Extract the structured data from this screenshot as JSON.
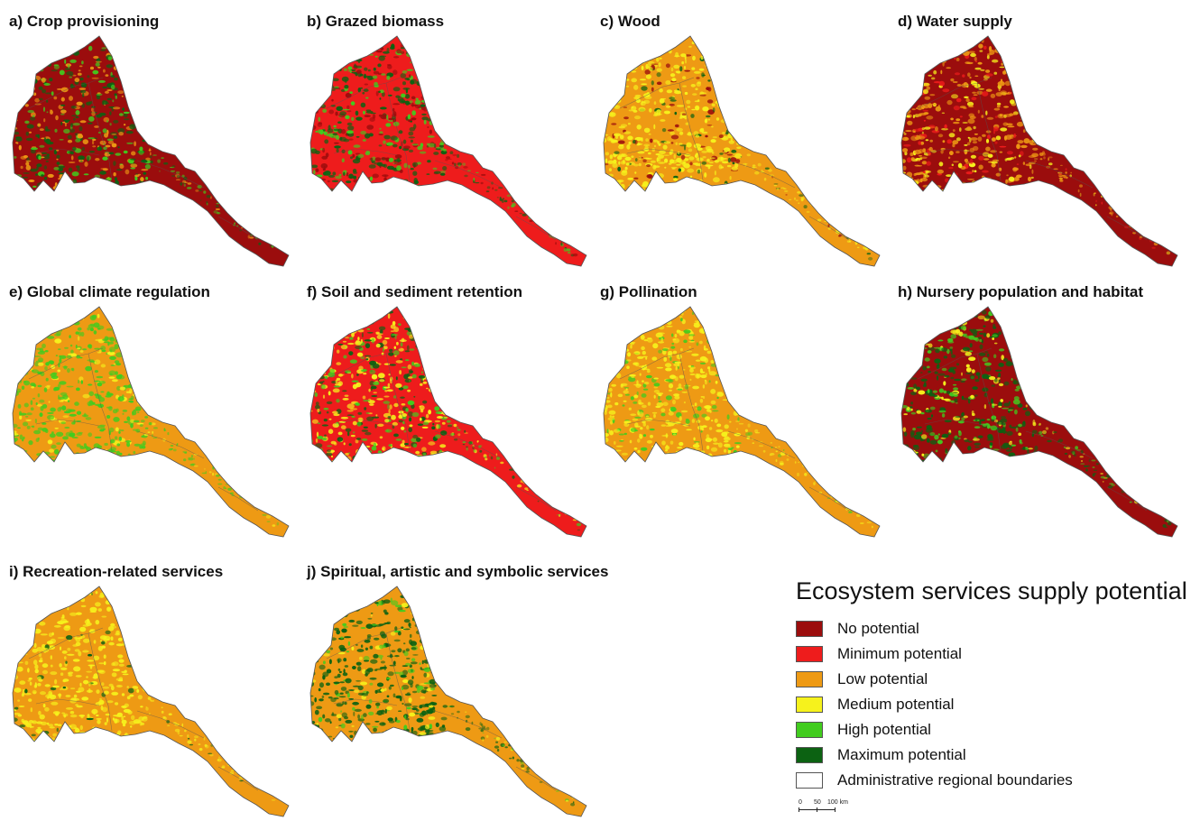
{
  "colors": {
    "no": "#9b0d0d",
    "minimum": "#ee1c1c",
    "low": "#ee9a14",
    "medium": "#f6f21c",
    "high": "#41cc1e",
    "maximum": "#0c6212",
    "boundary": "#555555"
  },
  "panels": [
    {
      "title": "a) Crop provisioning",
      "base": "no",
      "mix": [
        [
          "maximum",
          0.45
        ],
        [
          "high",
          0.25
        ],
        [
          "low",
          0.3
        ]
      ]
    },
    {
      "title": "b) Grazed biomass",
      "base": "minimum",
      "mix": [
        [
          "maximum",
          0.45
        ],
        [
          "high",
          0.3
        ],
        [
          "no",
          0.25
        ]
      ]
    },
    {
      "title": "c) Wood",
      "base": "low",
      "mix": [
        [
          "medium",
          0.75
        ],
        [
          "no",
          0.15
        ],
        [
          "maximum",
          0.1
        ]
      ]
    },
    {
      "title": "d) Water supply",
      "base": "no",
      "mix": [
        [
          "low",
          0.6
        ],
        [
          "medium",
          0.25
        ],
        [
          "minimum",
          0.15
        ]
      ]
    },
    {
      "title": "e) Global climate regulation",
      "base": "low",
      "mix": [
        [
          "high",
          0.8
        ],
        [
          "medium",
          0.2
        ]
      ]
    },
    {
      "title": "f) Soil and sediment retention",
      "base": "minimum",
      "mix": [
        [
          "medium",
          0.55
        ],
        [
          "maximum",
          0.25
        ],
        [
          "high",
          0.2
        ]
      ]
    },
    {
      "title": "g) Pollination",
      "base": "low",
      "mix": [
        [
          "medium",
          0.8
        ],
        [
          "high",
          0.2
        ]
      ]
    },
    {
      "title": "h) Nursery population and habitat",
      "base": "no",
      "mix": [
        [
          "maximum",
          0.55
        ],
        [
          "high",
          0.25
        ],
        [
          "medium",
          0.2
        ]
      ]
    },
    {
      "title": "i) Recreation-related services",
      "base": "low",
      "mix": [
        [
          "medium",
          0.9
        ],
        [
          "maximum",
          0.1
        ]
      ]
    },
    {
      "title": "j) Spiritual, artistic and symbolic services",
      "base": "low",
      "mix": [
        [
          "maximum",
          0.75
        ],
        [
          "high",
          0.15
        ],
        [
          "medium",
          0.1
        ]
      ]
    }
  ],
  "legend": {
    "title": "Ecosystem services supply potential",
    "items": [
      {
        "label": "No potential",
        "color": "#9b0d0d"
      },
      {
        "label": "Minimum potential",
        "color": "#ee1c1c"
      },
      {
        "label": "Low potential",
        "color": "#ee9a14"
      },
      {
        "label": "Medium potential",
        "color": "#f6f21c"
      },
      {
        "label": "High potential",
        "color": "#41cc1e"
      },
      {
        "label": "Maximum potential",
        "color": "#0c6212"
      },
      {
        "label": "Administrative regional boundaries",
        "color": "#ffffff"
      }
    ]
  },
  "scalebar": {
    "labels": [
      "0",
      "50",
      "100 km"
    ]
  }
}
